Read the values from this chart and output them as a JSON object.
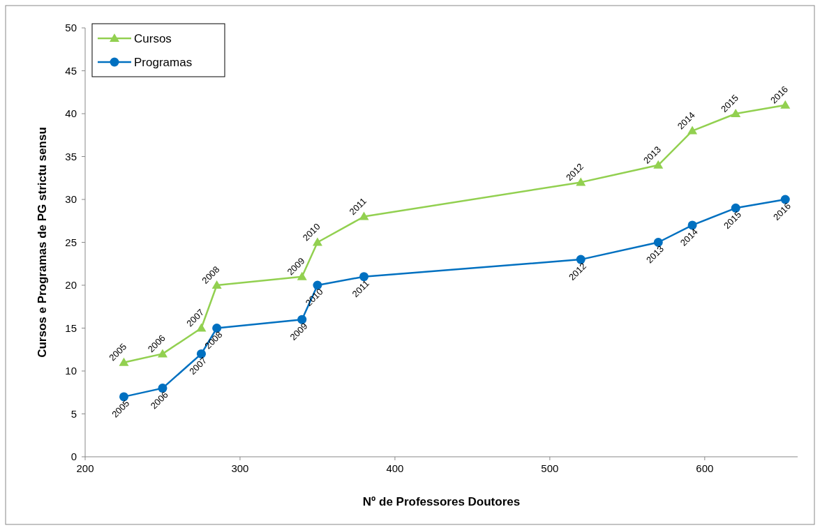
{
  "chart_data": {
    "type": "line",
    "xlabel": "Nº de Professores Doutores",
    "ylabel": "Cursos e Programas de PG strictu sensu",
    "xlim": [
      200,
      660
    ],
    "xticks": [
      200,
      300,
      400,
      500,
      600
    ],
    "ylim": [
      0,
      50
    ],
    "yticks": [
      0,
      5,
      10,
      15,
      20,
      25,
      30,
      35,
      40,
      45,
      50
    ],
    "grid": false,
    "legend": "top left",
    "series": [
      {
        "name": "Cursos",
        "color": "#92d050",
        "marker": "triangle",
        "x": [
          225,
          250,
          275,
          285,
          340,
          350,
          380,
          520,
          570,
          592,
          620,
          652
        ],
        "values": [
          11,
          12,
          15,
          20,
          21,
          25,
          28,
          32,
          34,
          38,
          40,
          41
        ]
      },
      {
        "name": "Programas",
        "color": "#0070c0",
        "marker": "circle",
        "x": [
          225,
          250,
          275,
          285,
          340,
          350,
          380,
          520,
          570,
          592,
          620,
          652
        ],
        "values": [
          7,
          8,
          12,
          15,
          16,
          20,
          21,
          23,
          25,
          27,
          29,
          30
        ]
      }
    ],
    "annotations": [
      {
        "text": "2005",
        "x": 225,
        "y": 11
      },
      {
        "text": "2006",
        "x": 250,
        "y": 12
      },
      {
        "text": "2007",
        "x": 275,
        "y": 15
      },
      {
        "text": "2008",
        "x": 285,
        "y": 20
      },
      {
        "text": "2009",
        "x": 340,
        "y": 21
      },
      {
        "text": "2010",
        "x": 350,
        "y": 25
      },
      {
        "text": "2011",
        "x": 380,
        "y": 28
      },
      {
        "text": "2012",
        "x": 520,
        "y": 32
      },
      {
        "text": "2013",
        "x": 570,
        "y": 34
      },
      {
        "text": "2014",
        "x": 592,
        "y": 38
      },
      {
        "text": "2015",
        "x": 620,
        "y": 40
      },
      {
        "text": "2016",
        "x": 652,
        "y": 41
      },
      {
        "text": "2005",
        "x": 225,
        "y": 7
      },
      {
        "text": "2006",
        "x": 250,
        "y": 8
      },
      {
        "text": "2007",
        "x": 275,
        "y": 12
      },
      {
        "text": "2008",
        "x": 285,
        "y": 15
      },
      {
        "text": "2009",
        "x": 340,
        "y": 16
      },
      {
        "text": "2010",
        "x": 350,
        "y": 20
      },
      {
        "text": "2011",
        "x": 380,
        "y": 21
      },
      {
        "text": "2012",
        "x": 520,
        "y": 23
      },
      {
        "text": "2013",
        "x": 570,
        "y": 25
      },
      {
        "text": "2014",
        "x": 592,
        "y": 27
      },
      {
        "text": "2015",
        "x": 620,
        "y": 29
      },
      {
        "text": "2016",
        "x": 652,
        "y": 30
      }
    ]
  }
}
